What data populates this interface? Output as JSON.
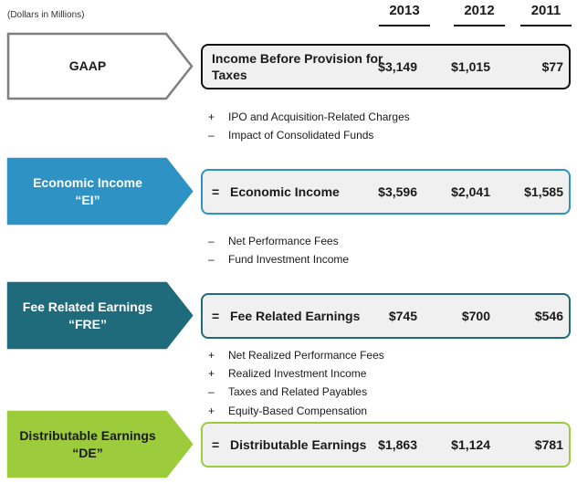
{
  "header": {
    "units": "(Dollars in Millions)",
    "years": [
      "2013",
      "2012",
      "2011"
    ]
  },
  "rows": [
    {
      "arrow_lines": [
        "GAAP"
      ],
      "arrow_fill": "#ffffff",
      "arrow_stroke": "#7f7f7f",
      "arrow_text_color": "#1a1a1a",
      "box_border": "#111111",
      "prefix": "",
      "label": "Income Before Provision for Taxes",
      "values": [
        "$3,149",
        "$1,015",
        "$77"
      ],
      "adjustments": [
        {
          "op": "+",
          "text": "IPO and Acquisition-Related Charges"
        },
        {
          "op": "–",
          "text": "Impact of Consolidated Funds"
        }
      ]
    },
    {
      "arrow_lines": [
        "Economic Income",
        "“EI”"
      ],
      "arrow_fill": "#2e93c4",
      "arrow_stroke": "#2e93c4",
      "arrow_text_color": "#ffffff",
      "box_border": "#2e93c4",
      "prefix": "=",
      "label": "Economic Income",
      "values": [
        "$3,596",
        "$2,041",
        "$1,585"
      ],
      "adjustments": [
        {
          "op": "–",
          "text": "Net Performance Fees"
        },
        {
          "op": "–",
          "text": "Fund Investment Income"
        }
      ]
    },
    {
      "arrow_lines": [
        "Fee Related Earnings",
        "“FRE”"
      ],
      "arrow_fill": "#1f6b7c",
      "arrow_stroke": "#1f6b7c",
      "arrow_text_color": "#ffffff",
      "box_border": "#1f6b7c",
      "prefix": "=",
      "label": "Fee Related Earnings",
      "values": [
        "$745",
        "$700",
        "$546"
      ],
      "adjustments": [
        {
          "op": "+",
          "text": "Net Realized Performance Fees"
        },
        {
          "op": "+",
          "text": "Realized Investment Income"
        },
        {
          "op": "–",
          "text": "Taxes and Related Payables"
        },
        {
          "op": "+",
          "text": "Equity-Based Compensation"
        }
      ]
    },
    {
      "arrow_lines": [
        "Distributable Earnings",
        "“DE”"
      ],
      "arrow_fill": "#9ccb3b",
      "arrow_stroke": "#9ccb3b",
      "arrow_text_color": "#1a1a1a",
      "box_border": "#9ccb3b",
      "prefix": "=",
      "label": "Distributable Earnings",
      "values": [
        "$1,863",
        "$1,124",
        "$781"
      ],
      "adjustments": []
    }
  ]
}
